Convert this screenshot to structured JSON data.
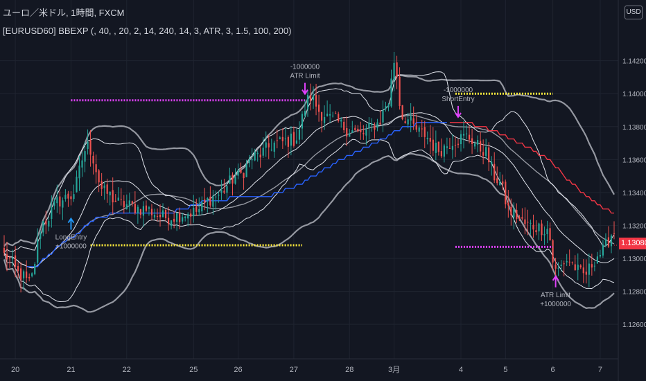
{
  "header": {
    "symbol_line": "ユーロ／米ドル, 1時間, FXCM",
    "indicator_line": "[EURUSD60] BBEXP (, 40, , 20, 2, 14, 240, 14, 3, ATR, 3, 1.5, 100, 200)"
  },
  "currency_button": "USD",
  "last_price": {
    "label": "1.13080",
    "value": 1.1308,
    "color": "#f23645"
  },
  "colors": {
    "background": "#131722",
    "grid": "#1f2430",
    "bull": "#26a69a",
    "bear": "#ef5350",
    "band_inner": "#e0e3eb",
    "band_outer": "#9598a1",
    "signal_long": "#2962ff",
    "signal_short": "#f23645",
    "target": "#ffeb3b",
    "stop": "#e040fb",
    "arrow": "#e040fb",
    "arrow_long": "#2196f3"
  },
  "chart_data": {
    "type": "candlestick",
    "ylim": [
      1.1255,
      1.1435
    ],
    "y_ticks": [
      "1.14200",
      "1.14000",
      "1.13800",
      "1.13600",
      "1.13400",
      "1.13200",
      "1.13000",
      "1.12800",
      "1.12600"
    ],
    "y_tick_values": [
      1.142,
      1.14,
      1.138,
      1.136,
      1.134,
      1.132,
      1.13,
      1.128,
      1.126
    ],
    "x_ticks": [
      "20",
      "21",
      "22",
      "25",
      "26",
      "27",
      "28",
      "3月",
      "4",
      "5",
      "6",
      "7"
    ],
    "x_tick_bar_index": [
      4,
      24,
      44,
      68,
      84,
      104,
      124,
      140,
      164,
      180,
      197,
      214
    ],
    "bar_count": 220,
    "anchors": [
      [
        0,
        1.1302
      ],
      [
        6,
        1.129
      ],
      [
        9,
        1.1285
      ],
      [
        14,
        1.1322
      ],
      [
        20,
        1.1335
      ],
      [
        24,
        1.1338
      ],
      [
        30,
        1.1368
      ],
      [
        36,
        1.134
      ],
      [
        42,
        1.1333
      ],
      [
        50,
        1.133
      ],
      [
        58,
        1.1325
      ],
      [
        68,
        1.1328
      ],
      [
        76,
        1.1338
      ],
      [
        84,
        1.135
      ],
      [
        90,
        1.1362
      ],
      [
        98,
        1.137
      ],
      [
        104,
        1.1372
      ],
      [
        110,
        1.1398
      ],
      [
        114,
        1.1388
      ],
      [
        118,
        1.1384
      ],
      [
        124,
        1.1378
      ],
      [
        128,
        1.1375
      ],
      [
        134,
        1.1382
      ],
      [
        138,
        1.1395
      ],
      [
        140,
        1.142
      ],
      [
        143,
        1.1386
      ],
      [
        150,
        1.1376
      ],
      [
        156,
        1.1366
      ],
      [
        162,
        1.1372
      ],
      [
        166,
        1.1374
      ],
      [
        172,
        1.1366
      ],
      [
        177,
        1.1348
      ],
      [
        182,
        1.1328
      ],
      [
        188,
        1.132
      ],
      [
        195,
        1.1318
      ],
      [
        198,
        1.1292
      ],
      [
        202,
        1.1299
      ],
      [
        208,
        1.129
      ],
      [
        214,
        1.1303
      ],
      [
        219,
        1.1316
      ]
    ],
    "signals": [
      {
        "label_top": "LongEntry",
        "label_bottom": "+1000000",
        "bar": 24,
        "price": 1.1325,
        "direction": "up",
        "label_position": "below"
      },
      {
        "label_top": "-1000000",
        "label_bottom": "ATR Limit",
        "bar": 108,
        "price": 1.1399,
        "direction": "down",
        "label_position": "above"
      },
      {
        "label_top": "-1000000",
        "label_bottom": "ShortEntry",
        "bar": 163,
        "price": 1.1385,
        "direction": "down",
        "label_position": "above"
      },
      {
        "label_top": "ATR Limit",
        "label_bottom": "+1000000",
        "bar": 198,
        "price": 1.129,
        "direction": "up",
        "label_position": "below"
      }
    ],
    "levels": [
      {
        "kind": "stop",
        "from_bar": 24,
        "to_bar": 108,
        "price": 1.1396
      },
      {
        "kind": "target",
        "from_bar": 31,
        "to_bar": 107,
        "price": 1.1308
      },
      {
        "kind": "target",
        "from_bar": 162,
        "to_bar": 197,
        "price": 1.14
      },
      {
        "kind": "stop",
        "from_bar": 162,
        "to_bar": 197,
        "price": 1.1307
      }
    ]
  }
}
